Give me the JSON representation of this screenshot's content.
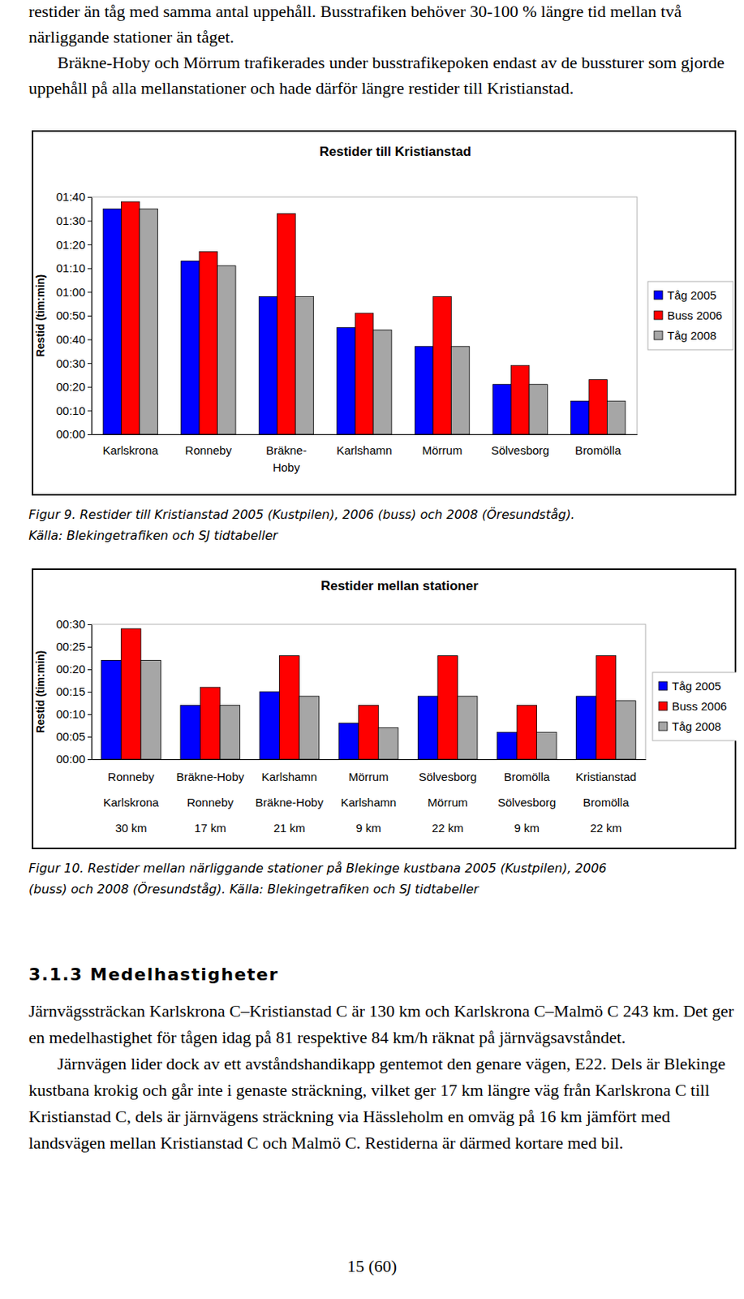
{
  "document": {
    "intro": [
      "restider än tåg med samma antal uppehåll. Busstrafiken behöver 30-100 % längre tid mellan två närliggande stationer än tåget.",
      "Bräkne-Hoby och Mörrum trafikerades under busstrafikepoken endast av de bussturer som gjorde uppehåll på alla mellanstationer och hade därför längre restider till Kristianstad."
    ],
    "figure_captions": [
      [
        "Figur 9. Restider till Kristianstad 2005 (Kustpilen), 2006 (buss) och 2008 (Öresundståg).",
        "Källa: Blekingetrafiken och SJ tidtabeller"
      ],
      [
        "Figur 10. Restider mellan närliggande stationer på Blekinge kustbana 2005 (Kustpilen), 2006",
        "(buss) och 2008 (Öresundståg). Källa: Blekingetrafiken och SJ tidtabeller"
      ]
    ],
    "heading": "3.1.3 Medelhastigheter",
    "body": [
      "Järnvägssträckan Karlskrona C–Kristianstad C är 130 km och Karlskrona C–Malmö C 243 km. Det ger en medelhastighet för tågen idag på 81 respektive 84 km/h räknat på järnvägsavståndet.",
      "Järnvägen lider dock av ett avståndshandikapp gentemot den genare vägen, E22. Dels är Blekinge kustbana krokig och går inte i genaste sträckning, vilket ger 17 km längre väg från Karlskrona C till Kristianstad C, dels är järnvägens sträckning via Hässleholm en omväg på 16 km jämfört med landsvägen mellan Kristianstad C och Malmö C. Restiderna är därmed kortare med bil."
    ],
    "page_number": "15 (60)"
  },
  "chart_data": [
    {
      "type": "bar",
      "title": "Restider till Kristianstad",
      "y_label": "Restid (tim:min)",
      "categories": [
        [
          "Karlskrona"
        ],
        [
          "Ronneby"
        ],
        [
          "Bräkne-",
          "Hoby"
        ],
        [
          "Karlshamn"
        ],
        [
          "Mörrum"
        ],
        [
          "Sölvesborg"
        ],
        [
          "Bromölla"
        ]
      ],
      "series": [
        {
          "name": "Tåg 2005",
          "color": "#0000ff",
          "values": [
            95,
            73,
            58,
            45,
            37,
            21,
            14
          ]
        },
        {
          "name": "Buss 2006",
          "color": "#ff0000",
          "values": [
            98,
            77,
            93,
            51,
            58,
            29,
            23
          ]
        },
        {
          "name": "Tåg 2008",
          "color": "#a6a6a6",
          "values": [
            95,
            71,
            58,
            44,
            37,
            21,
            14
          ]
        }
      ],
      "ylim": [
        0,
        100
      ],
      "yticks": [
        {
          "value": 0,
          "label": "00:00"
        },
        {
          "value": 10,
          "label": "00:10"
        },
        {
          "value": 20,
          "label": "00:20"
        },
        {
          "value": 30,
          "label": "00:30"
        },
        {
          "value": 40,
          "label": "00:40"
        },
        {
          "value": 50,
          "label": "00:50"
        },
        {
          "value": 60,
          "label": "01:00"
        },
        {
          "value": 70,
          "label": "01:10"
        },
        {
          "value": 80,
          "label": "01:20"
        },
        {
          "value": 90,
          "label": "01:30"
        },
        {
          "value": 100,
          "label": "01:40"
        }
      ],
      "grid": false,
      "legend": "right"
    },
    {
      "type": "bar",
      "title": "Restider mellan stationer",
      "y_label": "Restid (tim:min)",
      "categories": [
        [
          "Ronneby",
          "Karlskrona",
          "30 km"
        ],
        [
          "Bräkne-Hoby",
          "Ronneby",
          "17 km"
        ],
        [
          "Karlshamn",
          "Bräkne-Hoby",
          "21 km"
        ],
        [
          "Mörrum",
          "Karlshamn",
          "9 km"
        ],
        [
          "Sölvesborg",
          "Mörrum",
          "22 km"
        ],
        [
          "Bromölla",
          "Sölvesborg",
          "9 km"
        ],
        [
          "Kristianstad",
          "Bromölla",
          "22 km"
        ]
      ],
      "series": [
        {
          "name": "Tåg 2005",
          "color": "#0000ff",
          "values": [
            22,
            12,
            15,
            8,
            14,
            6,
            14
          ]
        },
        {
          "name": "Buss 2006",
          "color": "#ff0000",
          "values": [
            29,
            16,
            23,
            12,
            23,
            12,
            23
          ]
        },
        {
          "name": "Tåg 2008",
          "color": "#a6a6a6",
          "values": [
            22,
            12,
            14,
            7,
            14,
            6,
            13
          ]
        }
      ],
      "ylim": [
        0,
        30
      ],
      "yticks": [
        {
          "value": 0,
          "label": "00:00"
        },
        {
          "value": 5,
          "label": "00:05"
        },
        {
          "value": 10,
          "label": "00:10"
        },
        {
          "value": 15,
          "label": "00:15"
        },
        {
          "value": 20,
          "label": "00:20"
        },
        {
          "value": 25,
          "label": "00:25"
        },
        {
          "value": 30,
          "label": "00:30"
        }
      ],
      "grid": false,
      "legend": "right"
    }
  ]
}
